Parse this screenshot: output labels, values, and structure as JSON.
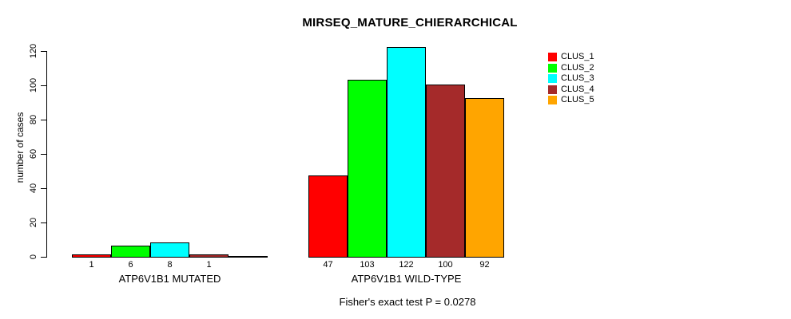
{
  "page": {
    "background": "#ffffff"
  },
  "chart_data": {
    "type": "bar",
    "title": "MIRSEQ_MATURE_CHIERARCHICAL",
    "ylabel": "number of cases",
    "xlabel": "",
    "ylim": [
      0,
      120
    ],
    "yticks": [
      0,
      20,
      40,
      60,
      80,
      100,
      120
    ],
    "grid": false,
    "legend_position": "top-right",
    "bar_border_color": "#000000",
    "series": [
      {
        "name": "CLUS_1",
        "color": "#FF0000"
      },
      {
        "name": "CLUS_2",
        "color": "#00FF00"
      },
      {
        "name": "CLUS_3",
        "color": "#00FFFF"
      },
      {
        "name": "CLUS_4",
        "color": "#A52A2A"
      },
      {
        "name": "CLUS_5",
        "color": "#FFA500"
      }
    ],
    "groups": [
      {
        "label": "ATP6V1B1 MUTATED",
        "values": [
          1,
          6,
          8,
          1,
          0
        ],
        "bar_labels": [
          "1",
          "6",
          "8",
          "1",
          ""
        ]
      },
      {
        "label": "ATP6V1B1 WILD-TYPE",
        "values": [
          47,
          103,
          122,
          100,
          92
        ],
        "bar_labels": [
          "47",
          "103",
          "122",
          "100",
          "92"
        ]
      }
    ],
    "footnote": "Fisher's exact test P = 0.0278"
  }
}
